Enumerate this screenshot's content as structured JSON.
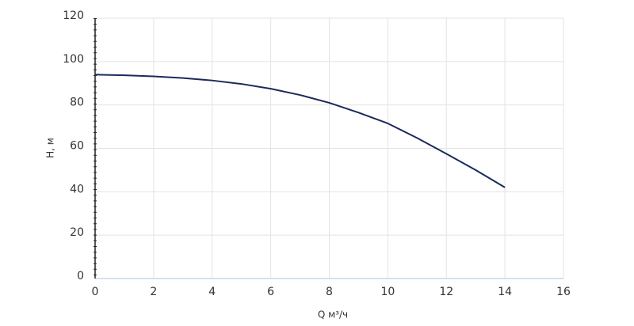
{
  "chart_data": {
    "type": "line",
    "x_label": "Q м³/ч",
    "y_label": "H, м",
    "x": [
      0,
      1,
      2,
      3,
      4,
      5,
      6,
      7,
      8,
      9,
      10,
      11,
      12,
      13,
      14
    ],
    "values": [
      94,
      93.7,
      93.2,
      92.4,
      91.3,
      89.7,
      87.5,
      84.6,
      81,
      76.5,
      71.5,
      64.8,
      57.5,
      50,
      42
    ],
    "color": "#1b2a5c",
    "xlim": [
      0,
      16
    ],
    "xticks": [
      0,
      2,
      4,
      6,
      8,
      10,
      12,
      14,
      16
    ],
    "ylim": [
      0,
      120
    ],
    "yticks": [
      0,
      20,
      40,
      60,
      80,
      100,
      120
    ],
    "grid": true
  }
}
